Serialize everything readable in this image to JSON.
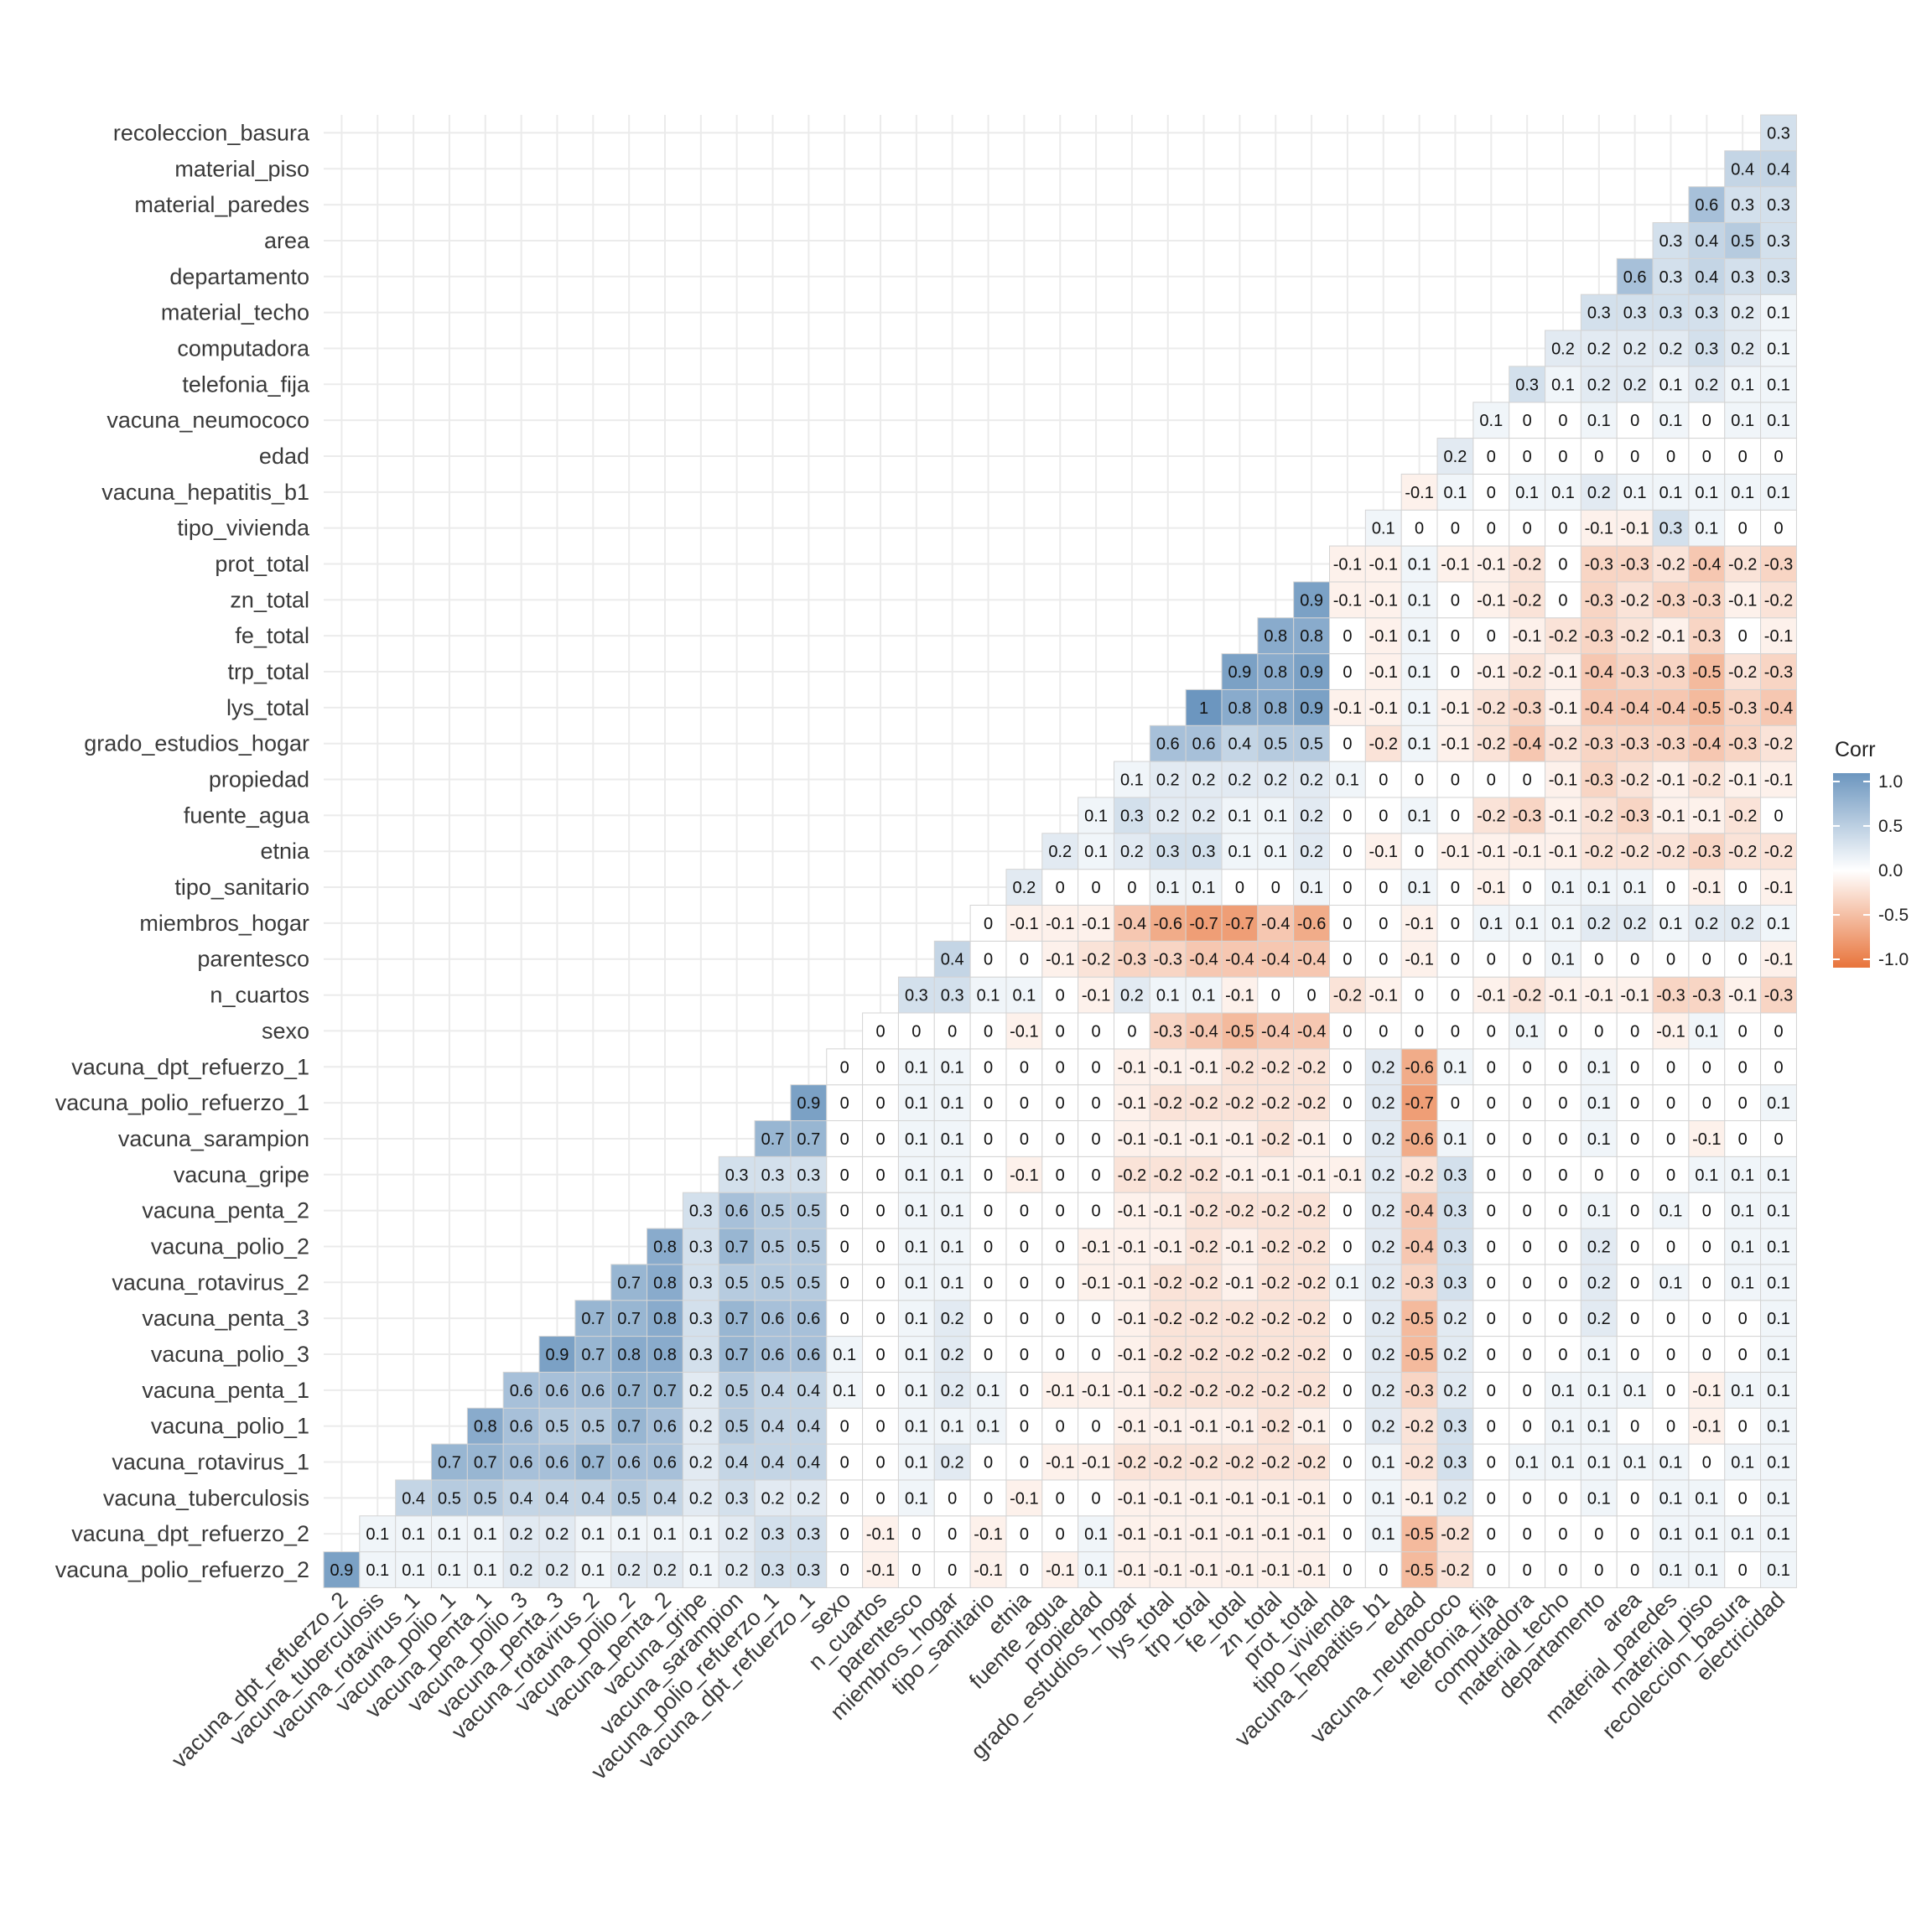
{
  "chart_data": {
    "type": "heatmap",
    "title": "",
    "xlabel": "",
    "ylabel": "",
    "x_labels": [
      "vacuna_dpt_refuerzo_2",
      "vacuna_tuberculosis",
      "vacuna_rotavirus_1",
      "vacuna_polio_1",
      "vacuna_penta_1",
      "vacuna_polio_3",
      "vacuna_penta_3",
      "vacuna_rotavirus_2",
      "vacuna_polio_2",
      "vacuna_penta_2",
      "vacuna_gripe",
      "vacuna_sarampion",
      "vacuna_polio_refuerzo_1",
      "vacuna_dpt_refuerzo_1",
      "sexo",
      "n_cuartos",
      "parentesco",
      "miembros_hogar",
      "tipo_sanitario",
      "etnia",
      "fuente_agua",
      "propiedad",
      "grado_estudios_hogar",
      "lys_total",
      "trp_total",
      "fe_total",
      "zn_total",
      "prot_total",
      "tipo_vivienda",
      "vacuna_hepatitis_b1",
      "edad",
      "vacuna_neumococo",
      "telefonia_fija",
      "computadora",
      "material_techo",
      "departamento",
      "area",
      "material_paredes",
      "material_piso",
      "recoleccion_basura",
      "electricidad"
    ],
    "y_labels": [
      "vacuna_polio_refuerzo_2",
      "vacuna_dpt_refuerzo_2",
      "vacuna_tuberculosis",
      "vacuna_rotavirus_1",
      "vacuna_polio_1",
      "vacuna_penta_1",
      "vacuna_polio_3",
      "vacuna_penta_3",
      "vacuna_rotavirus_2",
      "vacuna_polio_2",
      "vacuna_penta_2",
      "vacuna_gripe",
      "vacuna_sarampion",
      "vacuna_polio_refuerzo_1",
      "vacuna_dpt_refuerzo_1",
      "sexo",
      "n_cuartos",
      "parentesco",
      "miembros_hogar",
      "tipo_sanitario",
      "etnia",
      "fuente_agua",
      "propiedad",
      "grado_estudios_hogar",
      "lys_total",
      "trp_total",
      "fe_total",
      "zn_total",
      "prot_total",
      "tipo_vivienda",
      "vacuna_hepatitis_b1",
      "edad",
      "vacuna_neumococo",
      "telefonia_fija",
      "computadora",
      "material_techo",
      "departamento",
      "area",
      "material_paredes",
      "material_piso",
      "recoleccion_basura"
    ],
    "rows": [
      [
        0.9,
        0.1,
        0.1,
        0.1,
        0.1,
        0.2,
        0.2,
        0.1,
        0.2,
        0.2,
        0.1,
        0.2,
        0.3,
        0.3,
        0,
        -0.1,
        0,
        0,
        -0.1,
        0,
        -0.1,
        0.1,
        -0.1,
        -0.1,
        -0.1,
        -0.1,
        -0.1,
        -0.1,
        0,
        0,
        -0.5,
        -0.2,
        0,
        0,
        0,
        0,
        0,
        0.1,
        0.1,
        0,
        0.1
      ],
      [
        0.1,
        0.1,
        0.1,
        0.1,
        0.2,
        0.2,
        0.1,
        0.1,
        0.1,
        0.1,
        0.2,
        0.3,
        0.3,
        0,
        -0.1,
        0,
        0,
        -0.1,
        0,
        0,
        0.1,
        -0.1,
        -0.1,
        -0.1,
        -0.1,
        -0.1,
        -0.1,
        0,
        0.1,
        -0.5,
        -0.2,
        0,
        0,
        0,
        0,
        0,
        0.1,
        0.1,
        0.1,
        0.1
      ],
      [
        0.4,
        0.5,
        0.5,
        0.4,
        0.4,
        0.4,
        0.5,
        0.4,
        0.2,
        0.3,
        0.2,
        0.2,
        0,
        0,
        0.1,
        0,
        0,
        -0.1,
        0,
        0,
        -0.1,
        -0.1,
        -0.1,
        -0.1,
        -0.1,
        -0.1,
        0,
        0.1,
        -0.1,
        0.2,
        0,
        0,
        0,
        0.1,
        0,
        0.1,
        0.1,
        0,
        0.1
      ],
      [
        0.7,
        0.7,
        0.6,
        0.6,
        0.7,
        0.6,
        0.6,
        0.2,
        0.4,
        0.4,
        0.4,
        0,
        0,
        0.1,
        0.2,
        0,
        0,
        -0.1,
        -0.1,
        -0.2,
        -0.2,
        -0.2,
        -0.2,
        -0.2,
        -0.2,
        0,
        0.1,
        -0.2,
        0.3,
        0,
        0.1,
        0.1,
        0.1,
        0.1,
        0.1,
        0,
        0.1,
        0.1
      ],
      [
        0.8,
        0.6,
        0.5,
        0.5,
        0.7,
        0.6,
        0.2,
        0.5,
        0.4,
        0.4,
        0,
        0,
        0.1,
        0.1,
        0.1,
        0,
        0,
        0,
        -0.1,
        -0.1,
        -0.1,
        -0.1,
        -0.2,
        -0.1,
        0,
        0.2,
        -0.2,
        0.3,
        0,
        0,
        0.1,
        0.1,
        0,
        0,
        -0.1,
        0,
        0.1
      ],
      [
        0.6,
        0.6,
        0.6,
        0.7,
        0.7,
        0.2,
        0.5,
        0.4,
        0.4,
        0.1,
        0,
        0.1,
        0.2,
        0.1,
        0,
        -0.1,
        -0.1,
        -0.1,
        -0.2,
        -0.2,
        -0.2,
        -0.2,
        -0.2,
        0,
        0.2,
        -0.3,
        0.2,
        0,
        0,
        0.1,
        0.1,
        0.1,
        0,
        -0.1,
        0.1,
        0.1
      ],
      [
        0.9,
        0.7,
        0.8,
        0.8,
        0.3,
        0.7,
        0.6,
        0.6,
        0.1,
        0,
        0.1,
        0.2,
        0,
        0,
        0,
        0,
        -0.1,
        -0.2,
        -0.2,
        -0.2,
        -0.2,
        -0.2,
        0,
        0.2,
        -0.5,
        0.2,
        0,
        0,
        0,
        0.1,
        0,
        0,
        0,
        0,
        0.1
      ],
      [
        0.7,
        0.7,
        0.8,
        0.3,
        0.7,
        0.6,
        0.6,
        0,
        0,
        0.1,
        0.2,
        0,
        0,
        0,
        0,
        -0.1,
        -0.2,
        -0.2,
        -0.2,
        -0.2,
        -0.2,
        0,
        0.2,
        -0.5,
        0.2,
        0,
        0,
        0,
        0.2,
        0,
        0,
        0,
        0,
        0.1
      ],
      [
        0.7,
        0.8,
        0.3,
        0.5,
        0.5,
        0.5,
        0,
        0,
        0.1,
        0.1,
        0,
        0,
        0,
        -0.1,
        -0.1,
        -0.2,
        -0.2,
        -0.1,
        -0.2,
        -0.2,
        0.1,
        0.2,
        -0.3,
        0.3,
        0,
        0,
        0,
        0.2,
        0,
        0.1,
        0,
        0.1,
        0.1
      ],
      [
        0.8,
        0.3,
        0.7,
        0.5,
        0.5,
        0,
        0,
        0.1,
        0.1,
        0,
        0,
        0,
        -0.1,
        -0.1,
        -0.1,
        -0.2,
        -0.1,
        -0.2,
        -0.2,
        0,
        0.2,
        -0.4,
        0.3,
        0,
        0,
        0,
        0.2,
        0,
        0,
        0,
        0.1,
        0.1
      ],
      [
        0.3,
        0.6,
        0.5,
        0.5,
        0,
        0,
        0.1,
        0.1,
        0,
        0,
        0,
        0,
        -0.1,
        -0.1,
        -0.2,
        -0.2,
        -0.2,
        -0.2,
        0,
        0.2,
        -0.4,
        0.3,
        0,
        0,
        0,
        0.1,
        0,
        0.1,
        0,
        0.1,
        0.1
      ],
      [
        0.3,
        0.3,
        0.3,
        0,
        0,
        0.1,
        0.1,
        0,
        -0.1,
        0,
        0,
        -0.2,
        -0.2,
        -0.2,
        -0.1,
        -0.1,
        -0.1,
        -0.1,
        0.2,
        -0.2,
        0.3,
        0,
        0,
        0,
        0,
        0,
        0,
        0.1,
        0.1,
        0.1
      ],
      [
        0.7,
        0.7,
        0,
        0,
        0.1,
        0.1,
        0,
        0,
        0,
        0,
        -0.1,
        -0.1,
        -0.1,
        -0.1,
        -0.2,
        -0.1,
        0,
        0.2,
        -0.6,
        0.1,
        0,
        0,
        0,
        0.1,
        0,
        0,
        -0.1,
        0,
        0
      ],
      [
        0.9,
        0,
        0,
        0.1,
        0.1,
        0,
        0,
        0,
        0,
        -0.1,
        -0.2,
        -0.2,
        -0.2,
        -0.2,
        -0.2,
        0,
        0.2,
        -0.7,
        0,
        0,
        0,
        0,
        0.1,
        0,
        0,
        0,
        0,
        0.1
      ],
      [
        0,
        0,
        0.1,
        0.1,
        0,
        0,
        0,
        0,
        -0.1,
        -0.1,
        -0.1,
        -0.2,
        -0.2,
        -0.2,
        0,
        0.2,
        -0.6,
        0.1,
        0,
        0,
        0,
        0.1,
        0,
        0,
        0,
        0,
        0
      ],
      [
        0,
        0,
        0,
        0,
        -0.1,
        0,
        0,
        0,
        -0.3,
        -0.4,
        -0.5,
        -0.4,
        -0.4,
        0,
        0,
        0,
        0,
        0,
        0.1,
        0,
        0,
        0,
        -0.1,
        0.1,
        0,
        0
      ],
      [
        0.3,
        0.3,
        0.1,
        0.1,
        0,
        -0.1,
        0.2,
        0.1,
        0.1,
        -0.1,
        0,
        0,
        -0.2,
        -0.1,
        0,
        0,
        -0.1,
        -0.2,
        -0.1,
        -0.1,
        -0.1,
        -0.3,
        -0.3,
        -0.1,
        -0.3
      ],
      [
        0.4,
        0,
        0,
        -0.1,
        -0.2,
        -0.3,
        -0.3,
        -0.4,
        -0.4,
        -0.4,
        -0.4,
        0,
        0,
        -0.1,
        0,
        0,
        0,
        0.1,
        0,
        0,
        0,
        0,
        0,
        -0.1
      ],
      [
        0,
        -0.1,
        -0.1,
        -0.1,
        -0.4,
        -0.6,
        -0.7,
        -0.7,
        -0.4,
        -0.6,
        0,
        0,
        -0.1,
        0,
        0.1,
        0.1,
        0.1,
        0.2,
        0.2,
        0.1,
        0.2,
        0.2,
        0.1
      ],
      [
        0.2,
        0,
        0,
        0,
        0.1,
        0.1,
        0,
        0,
        0.1,
        0,
        0,
        0.1,
        0,
        -0.1,
        0,
        0.1,
        0.1,
        0.1,
        0,
        -0.1,
        0,
        -0.1
      ],
      [
        0.2,
        0.1,
        0.2,
        0.3,
        0.3,
        0.1,
        0.1,
        0.2,
        0,
        -0.1,
        0,
        -0.1,
        -0.1,
        -0.1,
        -0.1,
        -0.2,
        -0.2,
        -0.2,
        -0.3,
        -0.2,
        -0.2
      ],
      [
        0.1,
        0.3,
        0.2,
        0.2,
        0.1,
        0.1,
        0.2,
        0,
        0,
        0.1,
        0,
        -0.2,
        -0.3,
        -0.1,
        -0.2,
        -0.3,
        -0.1,
        -0.1,
        -0.2,
        0
      ],
      [
        0.1,
        0.2,
        0.2,
        0.2,
        0.2,
        0.2,
        0.1,
        0,
        0,
        0,
        0,
        0,
        -0.1,
        -0.3,
        -0.2,
        -0.1,
        -0.2,
        -0.1,
        -0.1
      ],
      [
        0.6,
        0.6,
        0.4,
        0.5,
        0.5,
        0,
        -0.2,
        0.1,
        -0.1,
        -0.2,
        -0.4,
        -0.2,
        -0.3,
        -0.3,
        -0.3,
        -0.4,
        -0.3,
        -0.2
      ],
      [
        1,
        0.8,
        0.8,
        0.9,
        -0.1,
        -0.1,
        0.1,
        -0.1,
        -0.2,
        -0.3,
        -0.1,
        -0.4,
        -0.4,
        -0.4,
        -0.5,
        -0.3,
        -0.4
      ],
      [
        0.9,
        0.8,
        0.9,
        0,
        -0.1,
        0.1,
        0,
        -0.1,
        -0.2,
        -0.1,
        -0.4,
        -0.3,
        -0.3,
        -0.5,
        -0.2,
        -0.3
      ],
      [
        0.8,
        0.8,
        0,
        -0.1,
        0.1,
        0,
        0,
        -0.1,
        -0.2,
        -0.3,
        -0.2,
        -0.1,
        -0.3,
        0,
        -0.1
      ],
      [
        0.9,
        -0.1,
        -0.1,
        0.1,
        0,
        -0.1,
        -0.2,
        0,
        -0.3,
        -0.2,
        -0.3,
        -0.3,
        -0.1,
        -0.2
      ],
      [
        -0.1,
        -0.1,
        0.1,
        -0.1,
        -0.1,
        -0.2,
        0,
        -0.3,
        -0.3,
        -0.2,
        -0.4,
        -0.2,
        -0.3
      ],
      [
        0.1,
        0,
        0,
        0,
        0,
        0,
        -0.1,
        -0.1,
        0.3,
        0.1,
        0,
        0
      ],
      [
        -0.1,
        0.1,
        0,
        0.1,
        0.1,
        0.2,
        0.1,
        0.1,
        0.1,
        0.1,
        0.1
      ],
      [
        0.2,
        0,
        0,
        0,
        0,
        0,
        0,
        0,
        0,
        0
      ],
      [
        0.1,
        0,
        0,
        0.1,
        0,
        0.1,
        0,
        0.1,
        0.1
      ],
      [
        0.3,
        0.1,
        0.2,
        0.2,
        0.1,
        0.2,
        0.1,
        0.1
      ],
      [
        0.2,
        0.2,
        0.2,
        0.2,
        0.3,
        0.2,
        0.1
      ],
      [
        0.3,
        0.3,
        0.3,
        0.3,
        0.2,
        0.1
      ],
      [
        0.6,
        0.3,
        0.4,
        0.3,
        0.3
      ],
      [
        0.3,
        0.4,
        0.5,
        0.3
      ],
      [
        0.6,
        0.3,
        0.3
      ],
      [
        0.4,
        0.4
      ],
      [
        0.3
      ]
    ],
    "color_scale": {
      "low": -1.0,
      "high": 1.0,
      "low_color": "#E8743B",
      "mid_color": "#FFFFFF",
      "high_color": "#6C96BF"
    },
    "legend": {
      "title": "Corr",
      "ticks": [
        "1.0",
        "0.5",
        "0.0",
        "-0.5",
        "-1.0"
      ],
      "position": "right"
    },
    "grid": true
  }
}
